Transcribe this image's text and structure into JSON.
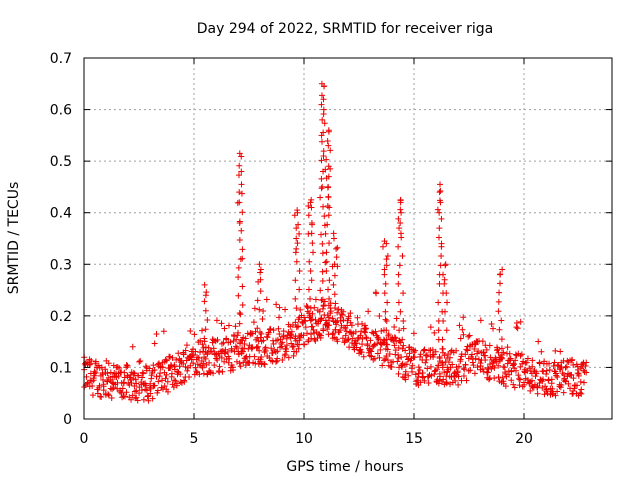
{
  "chart_data": {
    "type": "scatter",
    "title": "Day 294 of 2022, SRMTID for receiver riga",
    "xlabel": "GPS time / hours",
    "ylabel": "SRMTID / TECUs",
    "xlim": [
      0,
      24
    ],
    "ylim": [
      0,
      0.7
    ],
    "xticks": [
      "0",
      "5",
      "10",
      "15",
      "20"
    ],
    "yticks": [
      "0",
      "0.1",
      "0.2",
      "0.3",
      "0.4",
      "0.5",
      "0.6",
      "0.7"
    ],
    "grid": true,
    "marker": "plus",
    "color": "#ee0000",
    "series": [
      {
        "name": "SRMTID",
        "x_start": 0.0,
        "x_end": 22.8,
        "x_step": 0.06,
        "baseline": [
          [
            0.0,
            0.085
          ],
          [
            1.0,
            0.075
          ],
          [
            2.0,
            0.07
          ],
          [
            3.0,
            0.07
          ],
          [
            4.0,
            0.09
          ],
          [
            5.0,
            0.12
          ],
          [
            6.0,
            0.12
          ],
          [
            7.0,
            0.13
          ],
          [
            8.0,
            0.14
          ],
          [
            9.0,
            0.14
          ],
          [
            10.0,
            0.17
          ],
          [
            11.0,
            0.2
          ],
          [
            12.0,
            0.17
          ],
          [
            13.0,
            0.15
          ],
          [
            14.0,
            0.13
          ],
          [
            15.0,
            0.1
          ],
          [
            16.0,
            0.1
          ],
          [
            17.0,
            0.1
          ],
          [
            18.0,
            0.12
          ],
          [
            19.0,
            0.1
          ],
          [
            20.0,
            0.09
          ],
          [
            21.0,
            0.08
          ],
          [
            22.0,
            0.08
          ],
          [
            22.8,
            0.08
          ]
        ],
        "spread": 0.035,
        "peaks": [
          {
            "x": 7.1,
            "values": [
              0.31,
              0.38,
              0.42,
              0.44,
              0.48,
              0.515
            ]
          },
          {
            "x": 9.7,
            "values": [
              0.33,
              0.35,
              0.37,
              0.4,
              0.405
            ]
          },
          {
            "x": 10.3,
            "values": [
              0.36,
              0.38,
              0.41,
              0.425,
              0.42
            ]
          },
          {
            "x": 10.85,
            "values": [
              0.45,
              0.48,
              0.51,
              0.55,
              0.58,
              0.6,
              0.62,
              0.645,
              0.65
            ]
          },
          {
            "x": 11.1,
            "values": [
              0.41,
              0.43,
              0.45,
              0.47,
              0.49,
              0.53,
              0.56
            ]
          },
          {
            "x": 11.4,
            "values": [
              0.3,
              0.33,
              0.36
            ]
          },
          {
            "x": 13.7,
            "values": [
              0.29,
              0.31,
              0.34,
              0.345
            ]
          },
          {
            "x": 14.4,
            "values": [
              0.36,
              0.38,
              0.4,
              0.42,
              0.425
            ]
          },
          {
            "x": 16.2,
            "values": [
              0.34,
              0.4,
              0.42,
              0.44,
              0.455
            ]
          },
          {
            "x": 16.4,
            "values": [
              0.27,
              0.3
            ]
          },
          {
            "x": 18.95,
            "values": [
              0.28,
              0.29
            ]
          },
          {
            "x": 5.5,
            "values": [
              0.24,
              0.26
            ]
          },
          {
            "x": 8.0,
            "values": [
              0.27,
              0.29,
              0.3
            ]
          }
        ]
      }
    ]
  }
}
